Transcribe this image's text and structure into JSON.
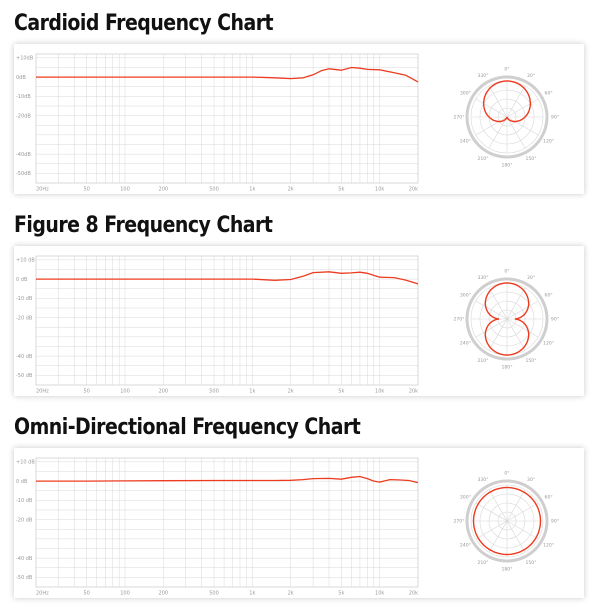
{
  "accent_color": "#ee3b1f",
  "grid_color": "#d8d8d8",
  "charts": [
    {
      "title": "Cardioid Frequency Chart",
      "pattern": "cardioid",
      "db_labels": [
        "+10dB",
        "0dB",
        "-10dB",
        "-20dB",
        "-40dB",
        "-50dB"
      ],
      "freq_labels": [
        "20Hz",
        "50",
        "100",
        "200",
        "500",
        "1k",
        "2k",
        "5k",
        "10k",
        "20k"
      ],
      "angle_labels": [
        "0°",
        "30°",
        "60°",
        "90°",
        "120°",
        "150°",
        "180°",
        "210°",
        "240°",
        "270°",
        "300°",
        "330°"
      ]
    },
    {
      "title": "Figure 8 Frequency Chart",
      "pattern": "figure8",
      "db_labels": [
        "+10 dB",
        "0 dB",
        "-10 dB",
        "-20 dB",
        "-40 dB",
        "-50 dB"
      ],
      "freq_labels": [
        "20Hz",
        "50",
        "100",
        "200",
        "500",
        "1k",
        "2k",
        "5k",
        "10k",
        "20k"
      ],
      "angle_labels": [
        "0°",
        "30°",
        "60°",
        "90°",
        "120°",
        "150°",
        "180°",
        "210°",
        "240°",
        "270°",
        "300°",
        "330°"
      ]
    },
    {
      "title": "Omni-Directional Frequency Chart",
      "pattern": "omni",
      "db_labels": [
        "+10 dB",
        "0 dB",
        "-10 dB",
        "-20 dB",
        "-40 dB",
        "-50 dB"
      ],
      "freq_labels": [
        "20Hz",
        "50",
        "100",
        "200",
        "500",
        "1k",
        "2k",
        "5k",
        "10k",
        "20k"
      ],
      "angle_labels": [
        "0°",
        "30°",
        "60°",
        "90°",
        "120°",
        "150°",
        "180°",
        "210°",
        "240°",
        "270°",
        "300°",
        "330°"
      ]
    }
  ],
  "chart_data": [
    {
      "type": "line",
      "title": "Cardioid Frequency Chart",
      "x_scale": "log",
      "xlim": [
        20,
        20000
      ],
      "ylim": [
        -55,
        12
      ],
      "grid": true,
      "series": [
        {
          "x": [
            20,
            50,
            100,
            200,
            500,
            1000,
            1400,
            2000,
            2500,
            3000,
            3500,
            4000,
            5000,
            6000,
            7000,
            8000,
            10000,
            13000,
            16000,
            20000
          ],
          "y": [
            0,
            0,
            0,
            0,
            0,
            0,
            -0.3,
            -0.8,
            -0.4,
            1.2,
            3.4,
            4.3,
            3.6,
            5.0,
            4.6,
            4.0,
            3.8,
            2.3,
            1.0,
            -2.5
          ]
        }
      ]
    },
    {
      "type": "line",
      "title": "Figure 8 Frequency Chart",
      "x_scale": "log",
      "xlim": [
        20,
        20000
      ],
      "ylim": [
        -55,
        12
      ],
      "grid": true,
      "series": [
        {
          "x": [
            20,
            50,
            100,
            200,
            500,
            1000,
            1500,
            2000,
            2500,
            3000,
            4000,
            5000,
            6000,
            7000,
            8000,
            10000,
            13000,
            16000,
            20000
          ],
          "y": [
            0,
            0,
            0,
            0,
            0,
            0,
            -0.6,
            -0.2,
            1.5,
            3.4,
            3.8,
            3.0,
            3.2,
            3.6,
            3.0,
            1.0,
            0.8,
            -0.5,
            -2.5
          ]
        }
      ]
    },
    {
      "type": "line",
      "title": "Omni-Directional Frequency Chart",
      "x_scale": "log",
      "xlim": [
        20,
        20000
      ],
      "ylim": [
        -55,
        12
      ],
      "grid": true,
      "series": [
        {
          "x": [
            20,
            50,
            100,
            200,
            500,
            1000,
            1500,
            2000,
            2500,
            3000,
            4000,
            5000,
            6000,
            7000,
            8000,
            9000,
            10000,
            12000,
            14000,
            17000,
            20000
          ],
          "y": [
            0,
            0,
            0.1,
            0.2,
            0.3,
            0.3,
            0.3,
            0.4,
            0.8,
            1.3,
            1.4,
            1.0,
            2.0,
            2.4,
            1.3,
            0.0,
            -0.5,
            0.8,
            0.6,
            0.3,
            -0.8
          ]
        }
      ]
    }
  ]
}
